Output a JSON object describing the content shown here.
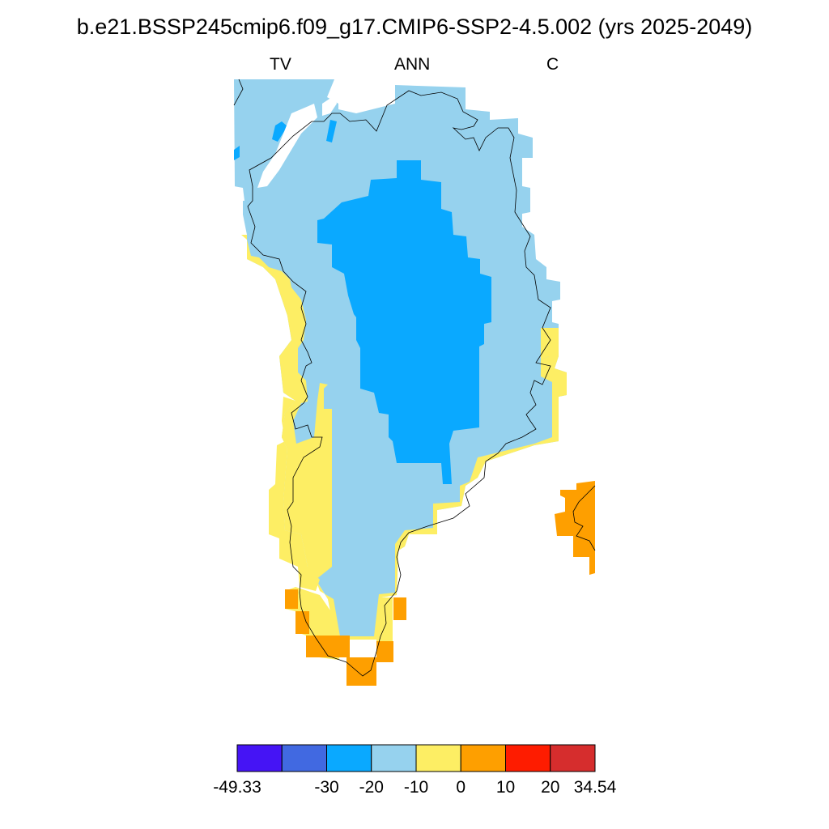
{
  "title": "b.e21.BSSP245cmip6.f09_g17.CMIP6-SSP2-4.5.002 (yrs 2025-2049)",
  "subtitles": {
    "left": "TV",
    "center": "ANN",
    "right": "C"
  },
  "colorbar": {
    "colors": [
      "#4514f5",
      "#4169e1",
      "#0aa9ff",
      "#96d2ee",
      "#fdee64",
      "#fe9f00",
      "#fe1c00",
      "#d62d2d"
    ],
    "labels": [
      "-49.33",
      "-30",
      "-20",
      "-10",
      "0",
      "10",
      "20",
      "34.54"
    ]
  },
  "map_fill": {
    "light_blue": "#96d2ee",
    "blue": "#0aa9ff",
    "yellow": "#fdee64",
    "orange": "#fe9f00"
  }
}
